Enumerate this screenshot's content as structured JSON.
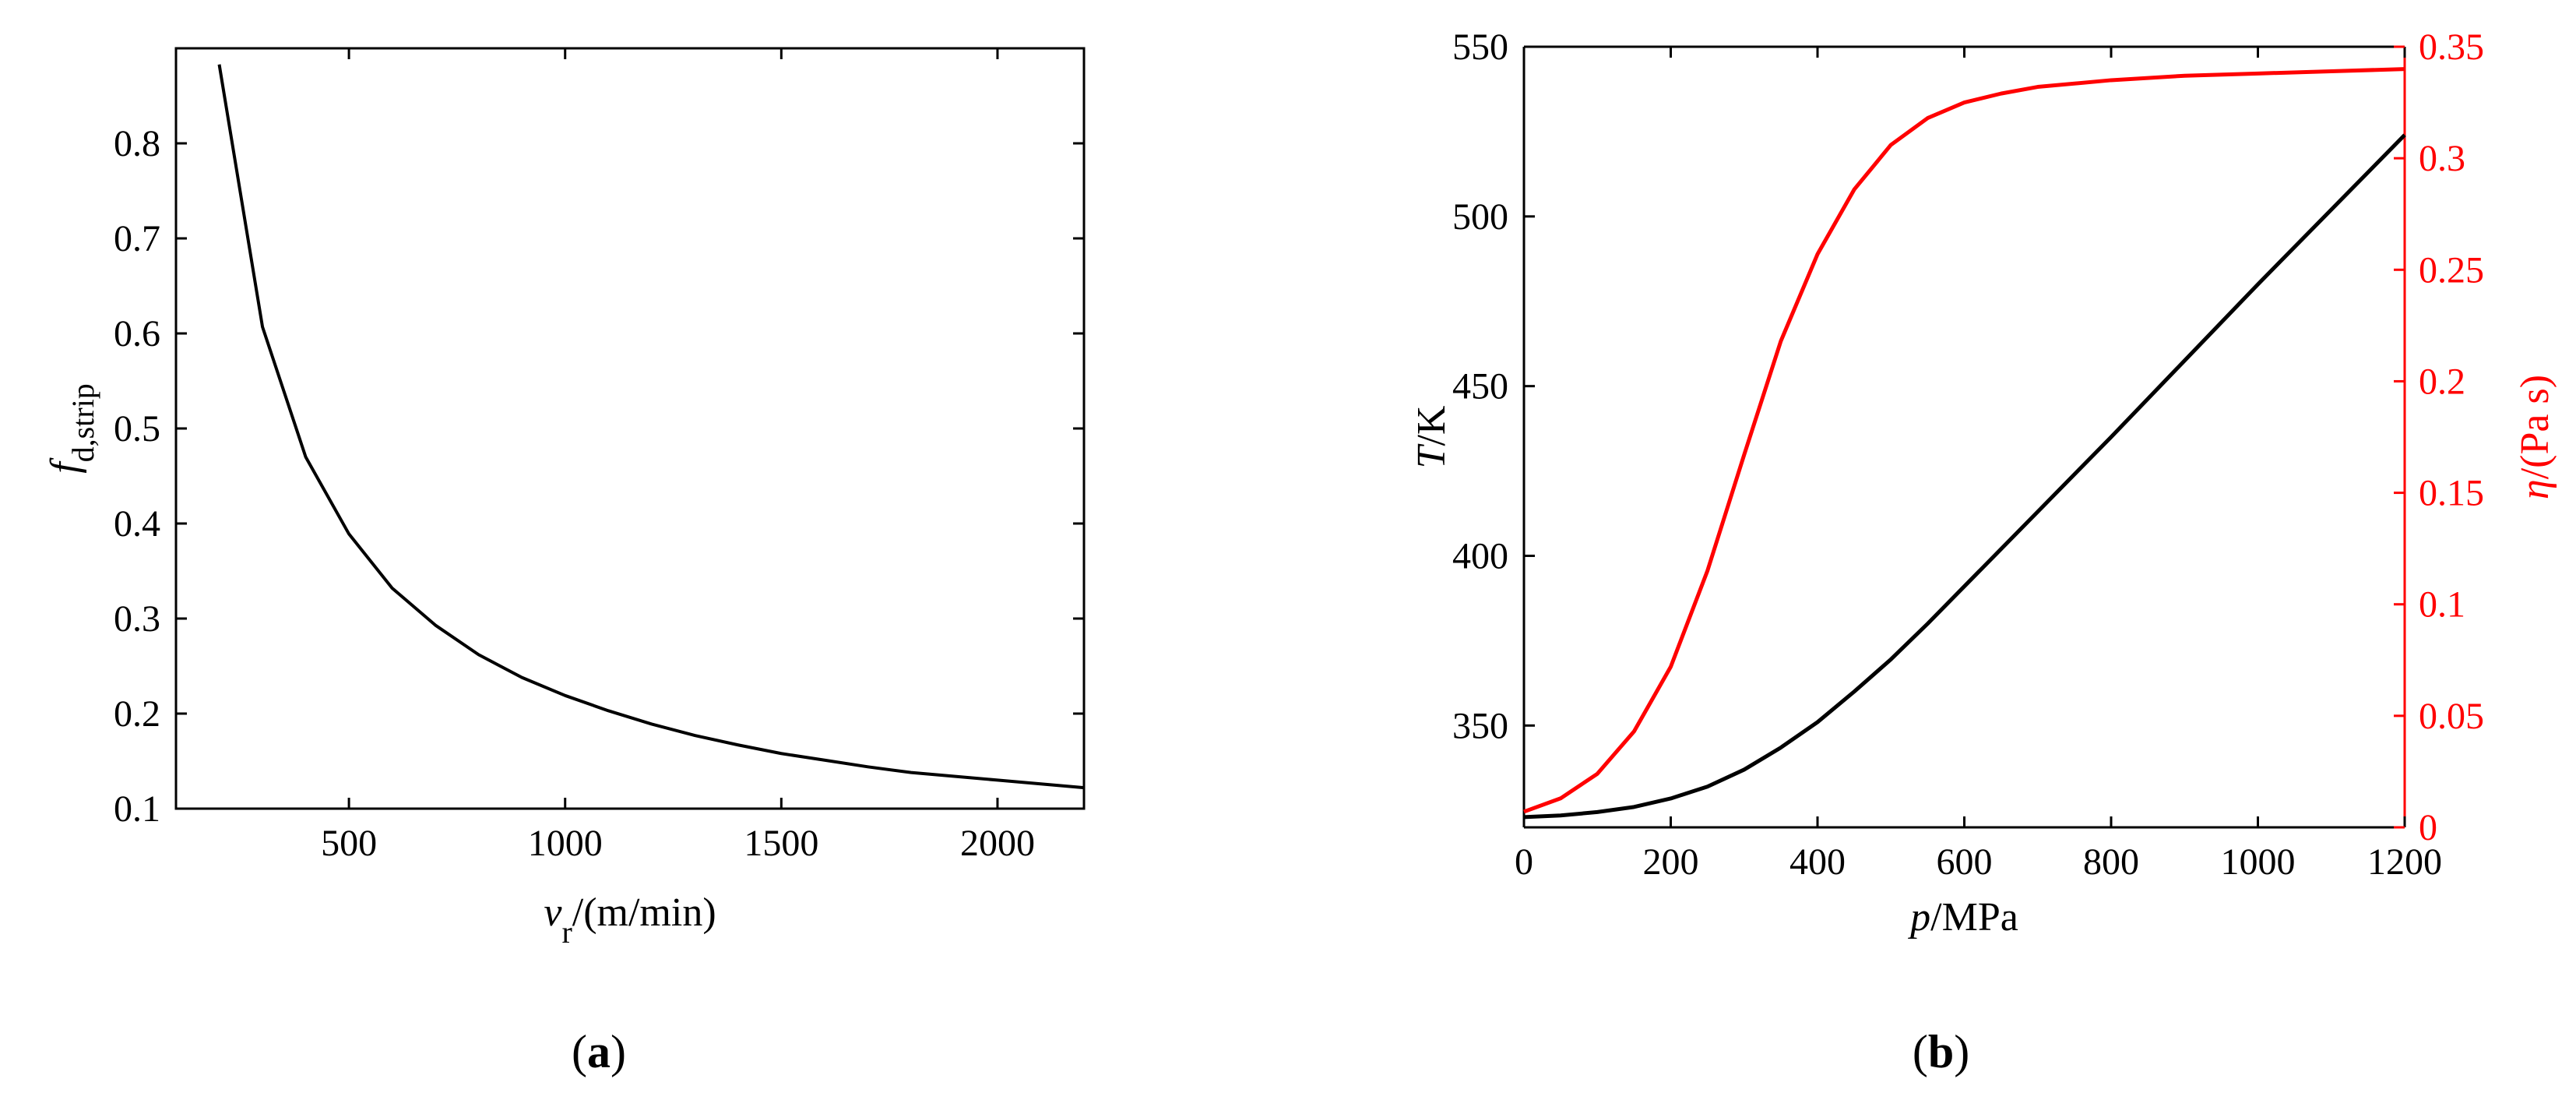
{
  "chart_data": [
    {
      "panel": "(a)",
      "panel_letter": "a",
      "type": "line",
      "xlabel": "v_r/(m/min)",
      "ylabel": "f_d,strip",
      "xlim": [
        100,
        2200
      ],
      "ylim": [
        0.1,
        0.9
      ],
      "xticks": [
        500,
        1000,
        1500,
        2000
      ],
      "yticks": [
        0.1,
        0.2,
        0.3,
        0.4,
        0.5,
        0.6,
        0.7,
        0.8
      ],
      "grid": false,
      "series": [
        {
          "color": "#000000",
          "x": [
            200,
            300,
            400,
            500,
            600,
            700,
            800,
            900,
            1000,
            1100,
            1200,
            1300,
            1400,
            1500,
            1600,
            1700,
            1800,
            1900,
            2000,
            2100,
            2200
          ],
          "y": [
            0.883,
            0.607,
            0.47,
            0.389,
            0.332,
            0.293,
            0.262,
            0.238,
            0.219,
            0.203,
            0.189,
            0.177,
            0.167,
            0.158,
            0.151,
            0.144,
            0.138,
            0.134,
            0.13,
            0.126,
            0.122
          ]
        }
      ]
    },
    {
      "panel": "(b)",
      "panel_letter": "b",
      "type": "line",
      "xlabel": "p/MPa",
      "ylabel": "T/K",
      "y2label": "η/(Pa s)",
      "xlim": [
        0,
        1200
      ],
      "ylim": [
        320,
        550
      ],
      "y2lim": [
        0,
        0.35
      ],
      "xticks": [
        0,
        200,
        400,
        600,
        800,
        1000,
        1200
      ],
      "yticks": [
        350,
        400,
        450,
        500,
        550
      ],
      "y2ticks": [
        0,
        0.05,
        0.1,
        0.15,
        0.2,
        0.25,
        0.3,
        0.35
      ],
      "grid": false,
      "series": [
        {
          "axis": "left",
          "color": "#000000",
          "x": [
            0,
            50,
            100,
            150,
            200,
            250,
            300,
            350,
            400,
            450,
            500,
            550,
            600,
            700,
            800,
            900,
            1000,
            1100,
            1200
          ],
          "y": [
            323,
            323.5,
            324.5,
            326,
            328.5,
            332,
            337,
            343.5,
            351,
            360,
            369.5,
            380,
            391,
            413,
            435,
            457.5,
            480,
            502,
            524
          ]
        },
        {
          "axis": "right",
          "color": "#ff0000",
          "x": [
            0,
            50,
            100,
            150,
            200,
            250,
            300,
            350,
            400,
            450,
            500,
            550,
            600,
            650,
            700,
            800,
            900,
            1000,
            1100,
            1200
          ],
          "y": [
            0.007,
            0.013,
            0.024,
            0.043,
            0.072,
            0.115,
            0.167,
            0.218,
            0.257,
            0.286,
            0.306,
            0.318,
            0.325,
            0.329,
            0.332,
            0.335,
            0.337,
            0.338,
            0.339,
            0.34
          ]
        }
      ]
    }
  ]
}
